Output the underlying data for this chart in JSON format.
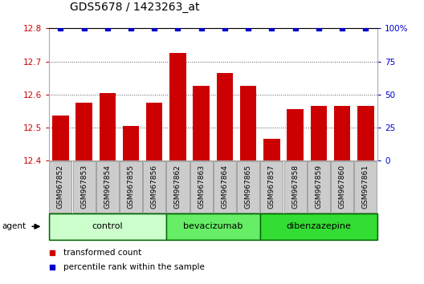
{
  "title": "GDS5678 / 1423263_at",
  "samples": [
    "GSM967852",
    "GSM967853",
    "GSM967854",
    "GSM967855",
    "GSM967856",
    "GSM967862",
    "GSM967863",
    "GSM967864",
    "GSM967865",
    "GSM967857",
    "GSM967858",
    "GSM967859",
    "GSM967860",
    "GSM967861"
  ],
  "values": [
    12.535,
    12.575,
    12.605,
    12.505,
    12.575,
    12.725,
    12.625,
    12.665,
    12.625,
    12.465,
    12.555,
    12.565,
    12.565,
    12.565
  ],
  "percentile": [
    100,
    100,
    100,
    100,
    100,
    100,
    100,
    100,
    100,
    100,
    100,
    100,
    100,
    100
  ],
  "bar_color": "#cc0000",
  "percentile_color": "#0000cc",
  "groups": [
    {
      "label": "control",
      "start": 0,
      "end": 5,
      "color": "#ccffcc"
    },
    {
      "label": "bevacizumab",
      "start": 5,
      "end": 9,
      "color": "#66ee66"
    },
    {
      "label": "dibenzazepine",
      "start": 9,
      "end": 14,
      "color": "#33dd33"
    }
  ],
  "ylim_left": [
    12.4,
    12.8
  ],
  "ylim_right": [
    0,
    100
  ],
  "yticks_left": [
    12.4,
    12.5,
    12.6,
    12.7,
    12.8
  ],
  "yticks_right": [
    0,
    25,
    50,
    75,
    100
  ],
  "ytick_labels_right": [
    "0",
    "25",
    "50",
    "75",
    "100%"
  ],
  "legend_items": [
    {
      "label": "transformed count",
      "color": "#cc0000"
    },
    {
      "label": "percentile rank within the sample",
      "color": "#0000cc"
    }
  ],
  "agent_label": "agent",
  "background_color": "#ffffff",
  "grid_color": "#000000",
  "tick_color_left": "#cc0000",
  "tick_color_right": "#0000cc",
  "sample_box_color": "#cccccc",
  "group_border_color": "#006600"
}
